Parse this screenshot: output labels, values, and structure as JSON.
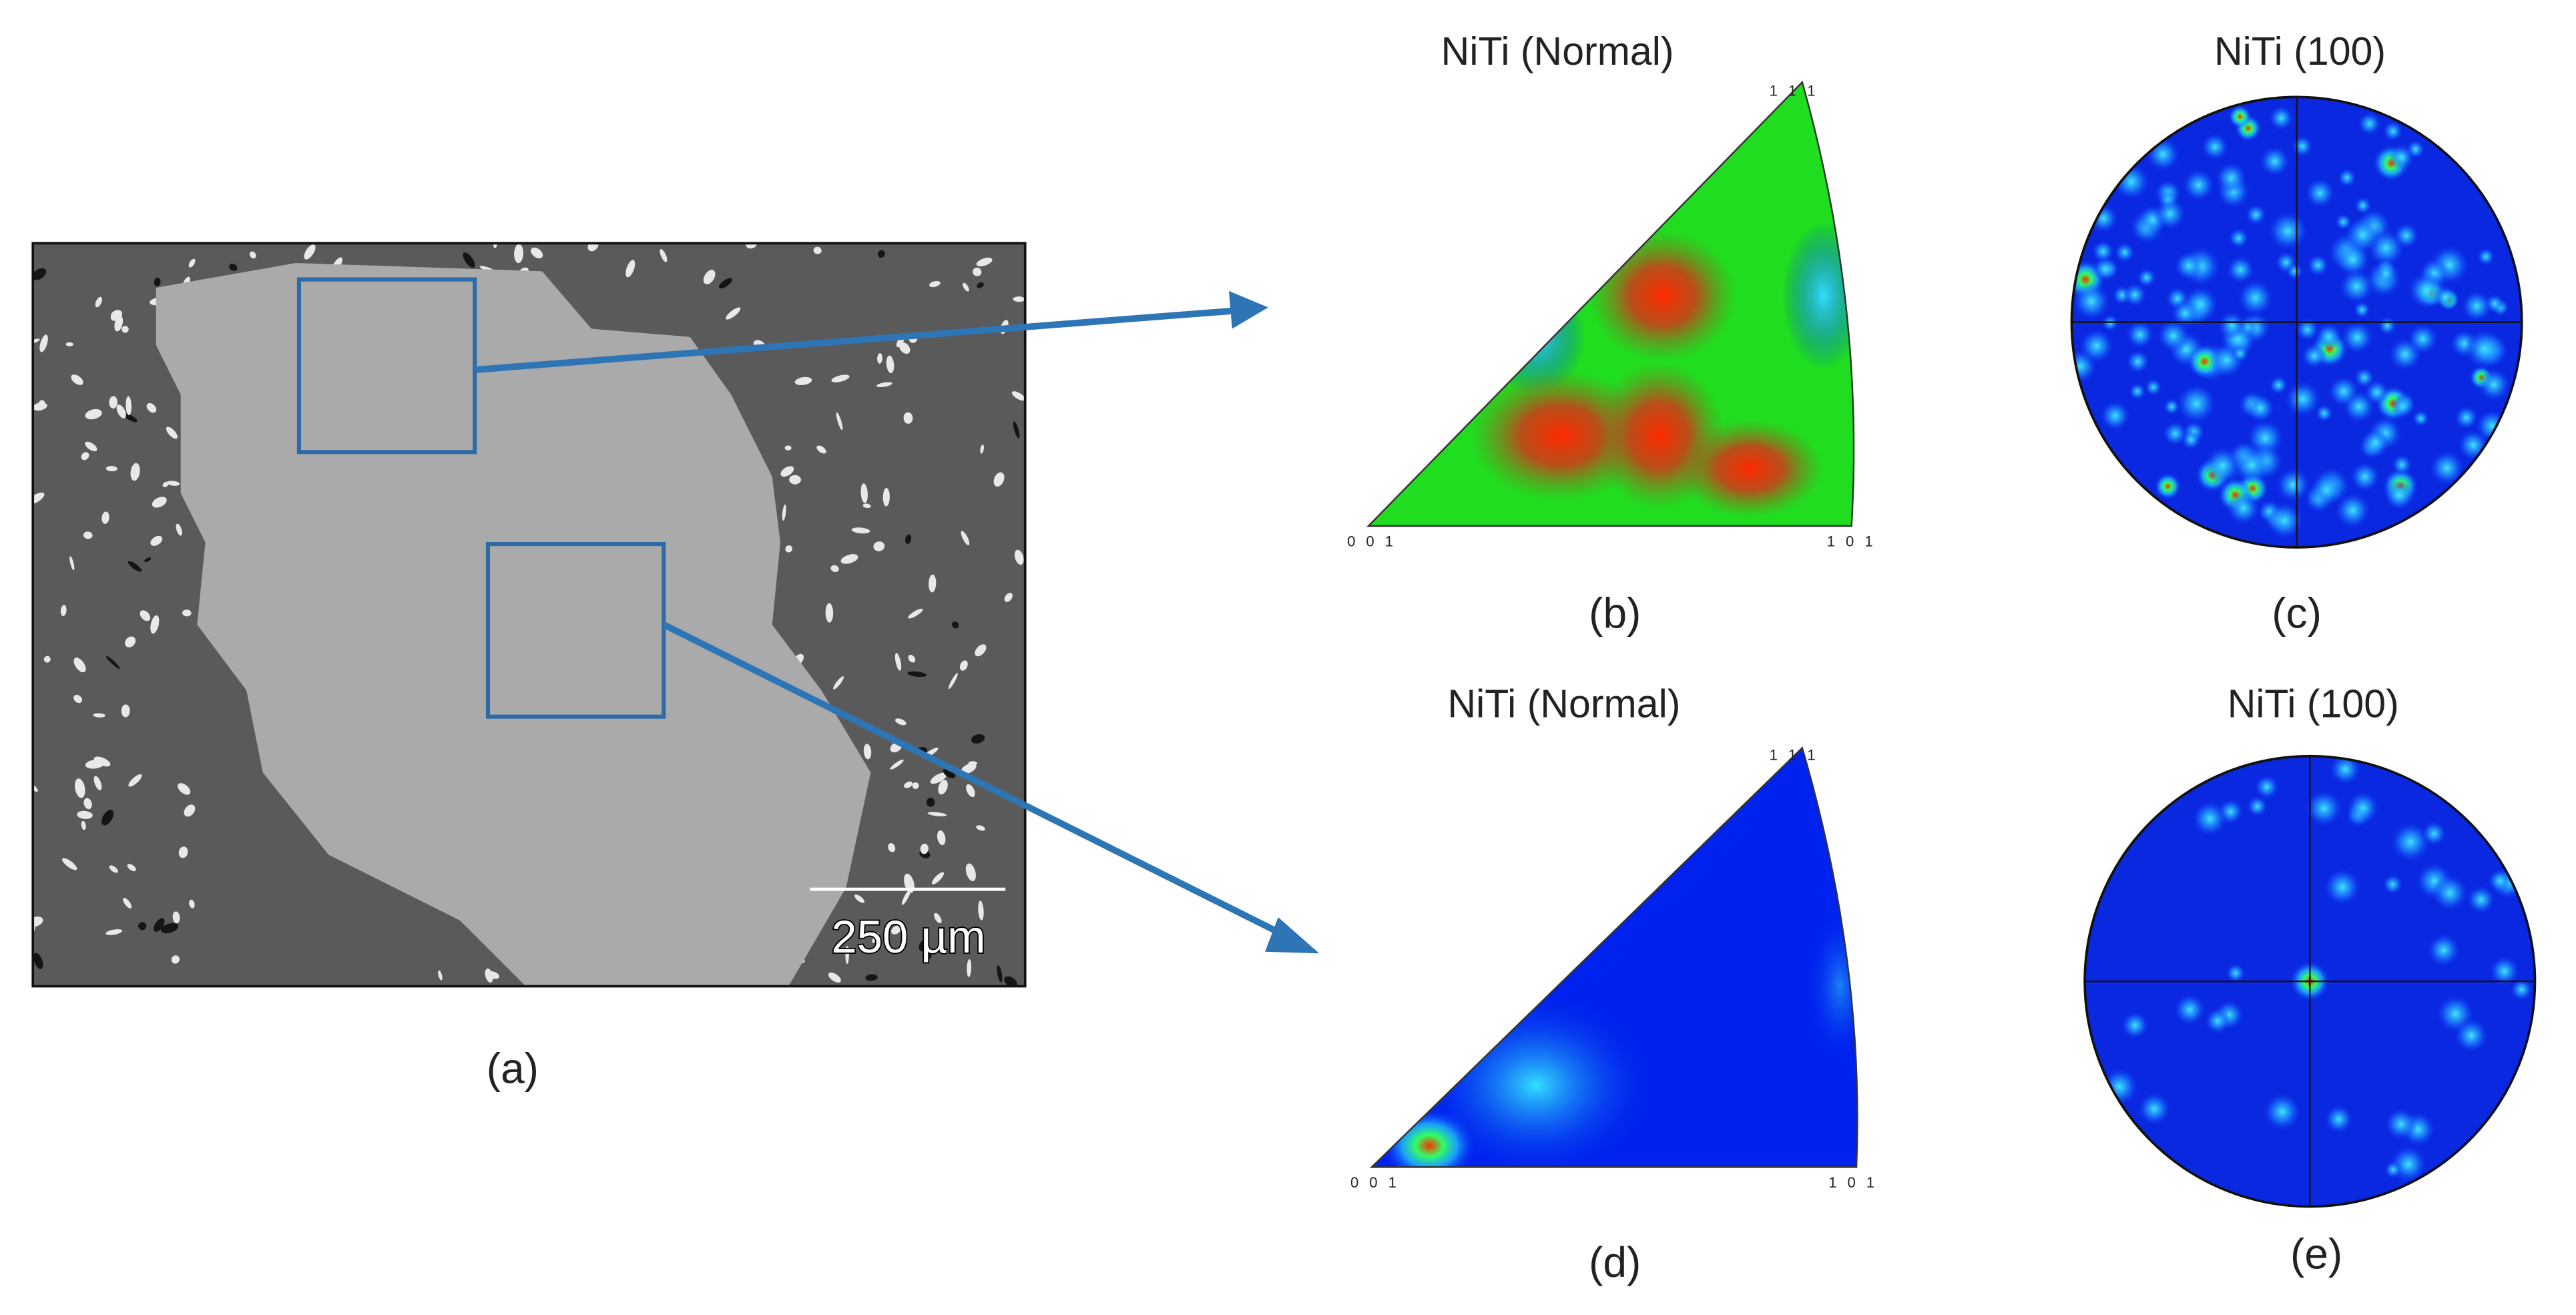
{
  "panels": [
    {
      "label": "(a)",
      "scale_bar": "250 µm"
    },
    {
      "label": "(b)",
      "title": "NiTi (Normal)",
      "corners": {
        "top": "1 1 1",
        "left": "0 0 1",
        "right": "1 0 1"
      }
    },
    {
      "label": "(c)",
      "title": "NiTi (100)"
    },
    {
      "label": "(d)",
      "title": "NiTi (Normal)",
      "corners": {
        "top": "1 1 1",
        "left": "0 0 1",
        "right": "1 0 1"
      }
    },
    {
      "label": "(e)",
      "title": "NiTi (100)"
    }
  ]
}
